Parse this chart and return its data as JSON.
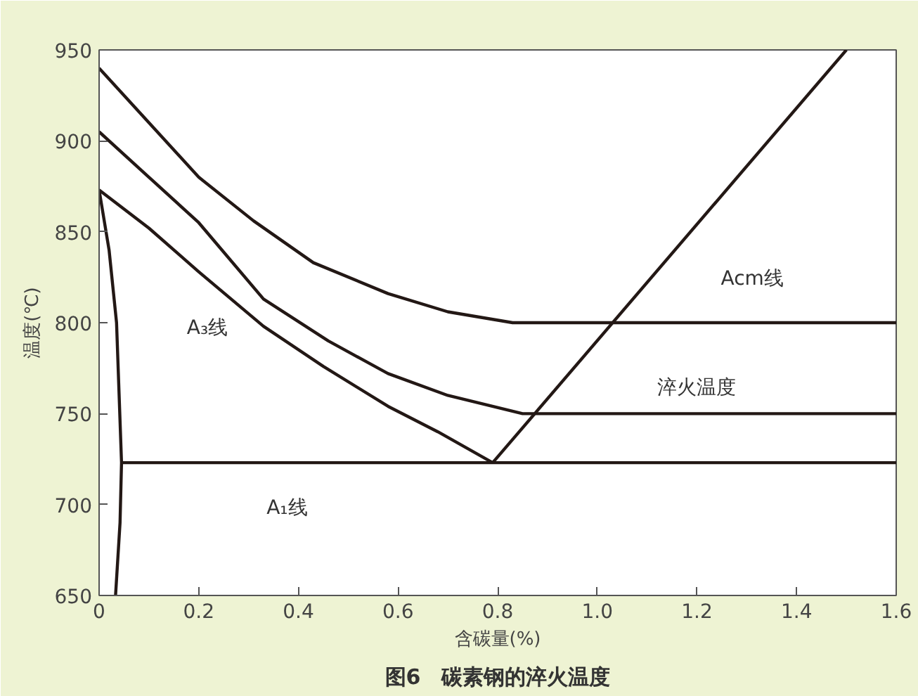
{
  "chart_data": {
    "type": "line",
    "title": "图6　碳素钢的淬火温度",
    "xlabel": "含碳量(%)",
    "ylabel": "温度(℃)",
    "xlim": [
      0,
      1.6
    ],
    "ylim": [
      650,
      950
    ],
    "xticks": [
      0,
      0.2,
      0.4,
      0.6,
      0.8,
      {
        "value": 1.0,
        "label": "1.0"
      },
      1.2,
      1.4,
      1.6
    ],
    "yticks": [
      650,
      700,
      750,
      800,
      850,
      900,
      950
    ],
    "grid": false,
    "marker": "none",
    "line_style": "solid",
    "series": [
      {
        "color": "#231815",
        "x": [
          0,
          0.1,
          0.2,
          0.31,
          0.43,
          0.58,
          0.7,
          0.83,
          1.6
        ],
        "values": [
          940,
          910,
          880,
          856,
          833,
          816,
          806,
          800,
          800
        ]
      },
      {
        "color": "#231815",
        "x": [
          0,
          0.1,
          0.2,
          0.33,
          0.46,
          0.58,
          0.7,
          0.85,
          1.6
        ],
        "values": [
          905,
          880,
          855,
          813,
          790,
          772,
          760,
          750,
          750
        ]
      },
      {
        "color": "#231815",
        "x": [
          0,
          0.1,
          0.2,
          0.33,
          0.45,
          0.58,
          0.68,
          0.79
        ],
        "values": [
          873,
          852,
          828,
          798,
          776,
          754,
          740,
          723
        ]
      },
      {
        "color": "#231815",
        "x": [
          0.79,
          1.5
        ],
        "values": [
          723,
          950
        ]
      },
      {
        "color": "#231815",
        "x": [
          0.045,
          1.6
        ],
        "values": [
          723,
          723
        ]
      },
      {
        "color": "#231815",
        "x": [
          0,
          0.02,
          0.035,
          0.045,
          0.042,
          0.033
        ],
        "values": [
          873,
          840,
          800,
          723,
          690,
          650
        ]
      }
    ],
    "annotations": [
      "A₃线",
      "A₁线",
      "Acm线",
      "淬火温度"
    ]
  }
}
